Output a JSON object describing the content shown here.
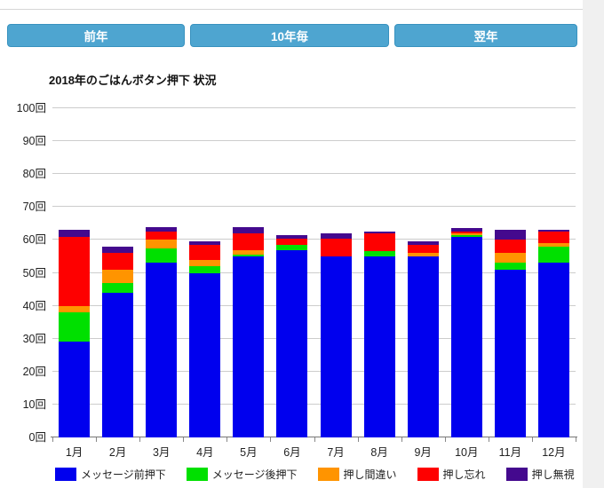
{
  "toolbar": {
    "buttons": [
      {
        "label": "前年"
      },
      {
        "label": "10年毎"
      },
      {
        "label": "翌年"
      }
    ],
    "button_color": "#4ea5d0"
  },
  "chart_data": {
    "type": "bar",
    "stacked": true,
    "title": "2018年のごはんボタン押下 状況",
    "categories": [
      "1月",
      "2月",
      "3月",
      "4月",
      "5月",
      "6月",
      "7月",
      "8月",
      "9月",
      "10月",
      "11月",
      "12月"
    ],
    "ylim": [
      0,
      100
    ],
    "ytick_step": 10,
    "y_tick_labels": [
      "0回",
      "10回",
      "20回",
      "30回",
      "40回",
      "50回",
      "60回",
      "70回",
      "80回",
      "90回",
      "100回"
    ],
    "grid": true,
    "legend_position": "bottom",
    "series": [
      {
        "name": "メッセージ前押下",
        "color": "#0000ee",
        "values": [
          29,
          44,
          53,
          50,
          55,
          57,
          55,
          55,
          55,
          61,
          51,
          53
        ]
      },
      {
        "name": "メッセージ後押下",
        "color": "#00e000",
        "values": [
          9,
          3,
          4.5,
          2,
          0.5,
          1.5,
          0,
          1.5,
          0,
          0.5,
          2,
          5
        ]
      },
      {
        "name": "押し間違い",
        "color": "#ff9400",
        "values": [
          2,
          4,
          2.5,
          2,
          1.5,
          0,
          0,
          0,
          1,
          0.5,
          3,
          1
        ]
      },
      {
        "name": "押し忘れ",
        "color": "#fe0000",
        "values": [
          21,
          5,
          2.5,
          4.5,
          5,
          2,
          5.5,
          5.5,
          2.5,
          0.5,
          4,
          3.5
        ]
      },
      {
        "name": "押し無視",
        "color": "#44098e",
        "values": [
          2,
          2,
          1.5,
          1,
          2,
          1,
          1.5,
          0.5,
          1,
          1,
          3,
          0.5
        ]
      }
    ]
  }
}
